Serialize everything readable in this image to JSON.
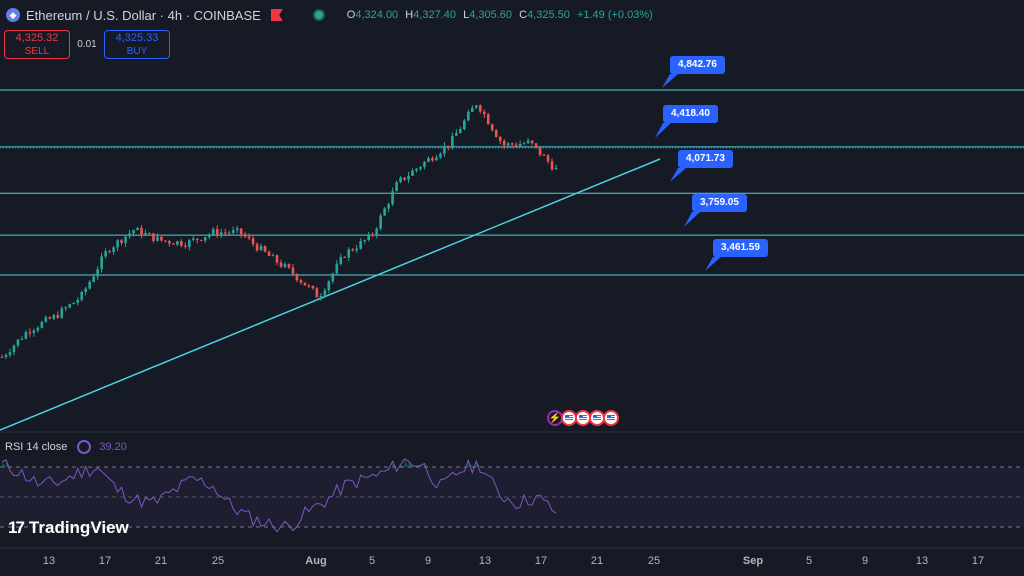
{
  "header": {
    "title": "Ethereum / U.S. Dollar · 4h · COINBASE",
    "symbol_icon": "ethereum-icon",
    "ohlc": {
      "o_label": "O",
      "o": "4,324.00",
      "h_label": "H",
      "h": "4,327.40",
      "l_label": "L",
      "l": "4,305.60",
      "c_label": "C",
      "c": "4,325.50",
      "change": "+1.49 (+0.03%)"
    }
  },
  "trade": {
    "sell_price": "4,325.32",
    "sell_label": "SELL",
    "spread": "0.01",
    "buy_price": "4,325.33",
    "buy_label": "BUY"
  },
  "levels": [
    "4,842.76",
    "4,418.40",
    "4,071.73",
    "3,759.05",
    "3,461.59"
  ],
  "rsi": {
    "label": "RSI 14 close",
    "value": "39.20"
  },
  "logo": {
    "text": "TradingView"
  },
  "xaxis": {
    "labels": [
      "13",
      "17",
      "21",
      "25",
      "Aug",
      "5",
      "9",
      "13",
      "17",
      "21",
      "25",
      "Sep",
      "5",
      "9",
      "13",
      "17"
    ]
  },
  "colors": {
    "up": "#26a69a",
    "down": "#ef5350",
    "line": "#4dd0e1",
    "callout": "#2962ff",
    "rsi": "#7e57c2"
  },
  "chart_data": {
    "type": "candlestick",
    "symbol": "Ethereum / U.S. Dollar",
    "interval": "4h",
    "exchange": "COINBASE",
    "last_ohlc": {
      "open": 4324.0,
      "high": 4327.4,
      "low": 4305.6,
      "close": 4325.5
    },
    "horizontal_levels": [
      4842.76,
      4418.4,
      4071.73,
      3759.05,
      3461.59
    ],
    "close_path": [
      2850,
      3050,
      3150,
      3300,
      3650,
      3800,
      3720,
      3700,
      3780,
      3780,
      3620,
      3480,
      3300,
      3620,
      3750,
      4150,
      4300,
      4450,
      4750,
      4430,
      4450,
      4250
    ],
    "x_tick_labels": [
      "13",
      "17",
      "21",
      "25",
      "Aug",
      "5",
      "9",
      "13",
      "17",
      "21",
      "25",
      "Sep",
      "5",
      "9",
      "13",
      "17"
    ],
    "rsi": {
      "period": 14,
      "source": "close",
      "last_value": 39.2,
      "bands": [
        70,
        50,
        30
      ]
    }
  }
}
